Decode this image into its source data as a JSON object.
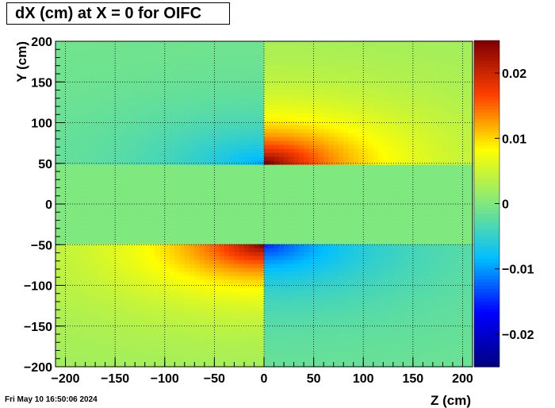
{
  "title": "dX (cm) at X = 0 for OIFC",
  "timestamp": "Fri May 10 16:50:06 2024",
  "chart_data": {
    "type": "heatmap",
    "title": "dX (cm) at X = 0 for OIFC",
    "xlabel": "Z (cm)",
    "ylabel": "Y (cm)",
    "xlim": [
      -210,
      210
    ],
    "ylim": [
      -200,
      200
    ],
    "x_ticks": [
      {
        "value": -200,
        "label": "−200"
      },
      {
        "value": -150,
        "label": "−150"
      },
      {
        "value": -100,
        "label": "−100"
      },
      {
        "value": -50,
        "label": "−50"
      },
      {
        "value": 0,
        "label": "0"
      },
      {
        "value": 50,
        "label": "50"
      },
      {
        "value": 100,
        "label": "100"
      },
      {
        "value": 150,
        "label": "150"
      },
      {
        "value": 200,
        "label": "200"
      }
    ],
    "y_ticks": [
      {
        "value": 200,
        "label": "200"
      },
      {
        "value": 150,
        "label": "150"
      },
      {
        "value": 100,
        "label": "100"
      },
      {
        "value": 50,
        "label": "50"
      },
      {
        "value": 0,
        "label": "0"
      },
      {
        "value": -50,
        "label": "−50"
      },
      {
        "value": -100,
        "label": "−100"
      },
      {
        "value": -150,
        "label": "−150"
      },
      {
        "value": -200,
        "label": "−200"
      }
    ],
    "colorbar": {
      "zlim": [
        -0.025,
        0.025
      ],
      "ticks": [
        {
          "value": 0.02,
          "label": "0.02"
        },
        {
          "value": 0.01,
          "label": "0.01"
        },
        {
          "value": 0,
          "label": "0"
        },
        {
          "value": -0.01,
          "label": "−0.01"
        },
        {
          "value": -0.02,
          "label": "−0.02"
        }
      ],
      "palette": [
        "#00007f",
        "#0000ff",
        "#00bfff",
        "#7fe87f",
        "#ffff00",
        "#ff4000",
        "#7f0000"
      ]
    },
    "grid": true,
    "regions": [
      {
        "z": [
          -210,
          0
        ],
        "y": [
          48,
          200
        ],
        "peak": -0.009,
        "peak_at": [
          0,
          50
        ]
      },
      {
        "z": [
          0,
          210
        ],
        "y": [
          48,
          200
        ],
        "peak": 0.024,
        "peak_at": [
          0,
          50
        ]
      },
      {
        "z": [
          -210,
          0
        ],
        "y": [
          -200,
          -48
        ],
        "peak": 0.023,
        "peak_at": [
          0,
          -50
        ]
      },
      {
        "z": [
          0,
          210
        ],
        "y": [
          -200,
          -48
        ],
        "peak": -0.014,
        "peak_at": [
          0,
          -50
        ]
      }
    ]
  }
}
